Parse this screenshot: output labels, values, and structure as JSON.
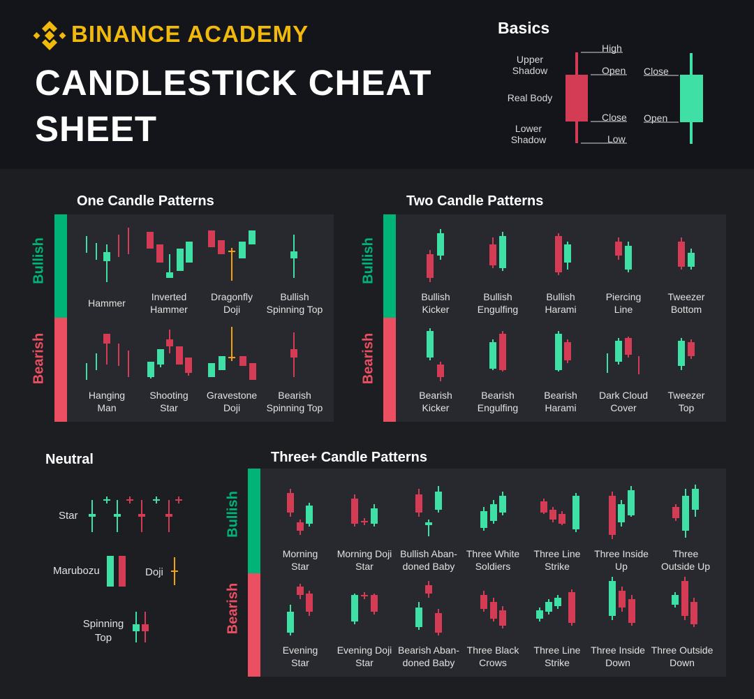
{
  "brand": "BINANCE ACADEMY",
  "title_line1": "CANDLESTICK CHEAT",
  "title_line2": "SHEET",
  "colors": {
    "gold": "#f0b90b",
    "bull": "#3ee0a5",
    "bear": "#d43b55",
    "bull_strip": "#00b478",
    "bear_strip": "#ec4e62",
    "doji": "#f0a30a"
  },
  "basics": {
    "title": "Basics",
    "upper_shadow": "Upper\nShadow",
    "real_body": "Real Body",
    "lower_shadow": "Lower\nShadow",
    "high": "High",
    "open": "Open",
    "close": "Close",
    "low": "Low",
    "close2": "Close",
    "open2": "Open"
  },
  "bullish": "Bullish",
  "bearish": "Bearish",
  "one": {
    "title": "One Candle Patterns",
    "bull": [
      "Hammer",
      "Inverted\nHammer",
      "Dragonfly\nDoji",
      "Bullish\nSpinning Top"
    ],
    "bear": [
      "Hanging\nMan",
      "Shooting\nStar",
      "Gravestone\nDoji",
      "Bearish\nSpinning Top"
    ]
  },
  "two": {
    "title": "Two Candle Patterns",
    "bull": [
      "Bullish\nKicker",
      "Bullish\nEngulfing",
      "Bullish\nHarami",
      "Piercing\nLine",
      "Tweezer\nBottom"
    ],
    "bear": [
      "Bearish\nKicker",
      "Bearish\nEngulfing",
      "Bearish\nHarami",
      "Dark Cloud\nCover",
      "Tweezer\nTop"
    ]
  },
  "neutral": {
    "title": "Neutral",
    "star": "Star",
    "marubozu": "Marubozu",
    "doji": "Doji",
    "spinning": "Spinning\nTop"
  },
  "three": {
    "title": "Three+ Candle Patterns",
    "bull": [
      "Morning\nStar",
      "Morning Doji\nStar",
      "Bullish Aban-\ndoned Baby",
      "Three White\nSoldiers",
      "Three Line\nStrike",
      "Three Inside\nUp",
      "Three\nOutside Up"
    ],
    "bear": [
      "Evening\nStar",
      "Evening Doji\nStar",
      "Bearish Aban-\ndoned Baby",
      "Three Black\nCrows",
      "Three Line\nStrike",
      "Three Inside\nDown",
      "Three Outside\nDown"
    ]
  }
}
